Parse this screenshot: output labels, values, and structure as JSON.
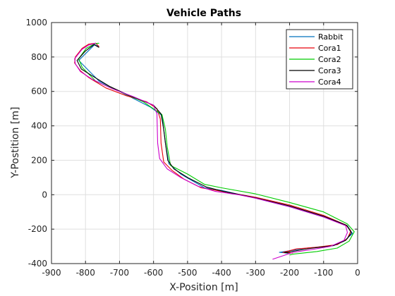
{
  "chart_data": {
    "type": "line",
    "title": "Vehicle Paths",
    "xlabel": "X-Position [m]",
    "ylabel": "Y-Postition [m]",
    "xlim": [
      -900,
      0
    ],
    "ylim": [
      -400,
      1000
    ],
    "xticks": [
      -900,
      -800,
      -700,
      -600,
      -500,
      -400,
      -300,
      -200,
      -100,
      0
    ],
    "yticks": [
      -400,
      -200,
      0,
      200,
      400,
      600,
      800,
      1000
    ],
    "grid": true,
    "legend_position": "top-right",
    "series": [
      {
        "name": "Rabbit",
        "color": "#0072BD",
        "points": [
          [
            -760,
            860
          ],
          [
            -773,
            872
          ],
          [
            -820,
            780
          ],
          [
            -800,
            740
          ],
          [
            -760,
            660
          ],
          [
            -680,
            580
          ],
          [
            -610,
            510
          ],
          [
            -575,
            460
          ],
          [
            -565,
            300
          ],
          [
            -555,
            180
          ],
          [
            -520,
            120
          ],
          [
            -450,
            40
          ],
          [
            -400,
            25
          ],
          [
            -300,
            -20
          ],
          [
            -200,
            -70
          ],
          [
            -100,
            -130
          ],
          [
            -30,
            -180
          ],
          [
            -15,
            -225
          ],
          [
            -40,
            -270
          ],
          [
            -70,
            -295
          ],
          [
            -150,
            -310
          ],
          [
            -230,
            -335
          ],
          [
            -200,
            -340
          ]
        ]
      },
      {
        "name": "Cora1",
        "color": "#E8000B",
        "points": [
          [
            -760,
            860
          ],
          [
            -770,
            880
          ],
          [
            -790,
            875
          ],
          [
            -810,
            850
          ],
          [
            -830,
            800
          ],
          [
            -832,
            765
          ],
          [
            -815,
            720
          ],
          [
            -790,
            680
          ],
          [
            -740,
            620
          ],
          [
            -680,
            575
          ],
          [
            -620,
            540
          ],
          [
            -590,
            500
          ],
          [
            -580,
            440
          ],
          [
            -578,
            300
          ],
          [
            -570,
            190
          ],
          [
            -545,
            140
          ],
          [
            -510,
            90
          ],
          [
            -460,
            40
          ],
          [
            -400,
            20
          ],
          [
            -300,
            -15
          ],
          [
            -200,
            -60
          ],
          [
            -100,
            -120
          ],
          [
            -35,
            -175
          ],
          [
            -20,
            -210
          ],
          [
            -30,
            -255
          ],
          [
            -60,
            -290
          ],
          [
            -120,
            -305
          ],
          [
            -180,
            -315
          ],
          [
            -220,
            -335
          ],
          [
            -190,
            -338
          ]
        ]
      },
      {
        "name": "Cora2",
        "color": "#00CC00",
        "points": [
          [
            -760,
            880
          ],
          [
            -772,
            878
          ],
          [
            -798,
            850
          ],
          [
            -820,
            790
          ],
          [
            -810,
            740
          ],
          [
            -770,
            660
          ],
          [
            -700,
            600
          ],
          [
            -630,
            540
          ],
          [
            -575,
            465
          ],
          [
            -565,
            380
          ],
          [
            -560,
            280
          ],
          [
            -550,
            170
          ],
          [
            -500,
            120
          ],
          [
            -450,
            60
          ],
          [
            -400,
            40
          ],
          [
            -300,
            5
          ],
          [
            -200,
            -45
          ],
          [
            -100,
            -100
          ],
          [
            -30,
            -170
          ],
          [
            -10,
            -215
          ],
          [
            -25,
            -270
          ],
          [
            -60,
            -310
          ],
          [
            -120,
            -330
          ],
          [
            -190,
            -345
          ],
          [
            -200,
            -350
          ]
        ]
      },
      {
        "name": "Cora3",
        "color": "#000000",
        "points": [
          [
            -760,
            855
          ],
          [
            -775,
            872
          ],
          [
            -800,
            835
          ],
          [
            -825,
            780
          ],
          [
            -812,
            730
          ],
          [
            -780,
            690
          ],
          [
            -730,
            630
          ],
          [
            -670,
            575
          ],
          [
            -600,
            520
          ],
          [
            -578,
            470
          ],
          [
            -570,
            380
          ],
          [
            -565,
            300
          ],
          [
            -558,
            200
          ],
          [
            -540,
            150
          ],
          [
            -500,
            100
          ],
          [
            -445,
            45
          ],
          [
            -400,
            22
          ],
          [
            -300,
            -18
          ],
          [
            -200,
            -65
          ],
          [
            -100,
            -125
          ],
          [
            -32,
            -178
          ],
          [
            -18,
            -222
          ],
          [
            -35,
            -265
          ],
          [
            -70,
            -295
          ],
          [
            -140,
            -312
          ],
          [
            -215,
            -336
          ],
          [
            -205,
            -339
          ]
        ]
      },
      {
        "name": "Cora4",
        "color": "#CC00CC",
        "points": [
          [
            -770,
            880
          ],
          [
            -790,
            870
          ],
          [
            -810,
            845
          ],
          [
            -832,
            790
          ],
          [
            -830,
            760
          ],
          [
            -815,
            715
          ],
          [
            -780,
            670
          ],
          [
            -720,
            615
          ],
          [
            -660,
            570
          ],
          [
            -600,
            520
          ],
          [
            -590,
            470
          ],
          [
            -588,
            300
          ],
          [
            -582,
            210
          ],
          [
            -560,
            150
          ],
          [
            -520,
            100
          ],
          [
            -470,
            50
          ],
          [
            -420,
            20
          ],
          [
            -350,
            0
          ],
          [
            -300,
            -20
          ],
          [
            -200,
            -70
          ],
          [
            -100,
            -130
          ],
          [
            -35,
            -180
          ],
          [
            -30,
            -220
          ],
          [
            -40,
            -265
          ],
          [
            -80,
            -300
          ],
          [
            -140,
            -320
          ],
          [
            -190,
            -335
          ],
          [
            -250,
            -375
          ]
        ]
      }
    ]
  }
}
